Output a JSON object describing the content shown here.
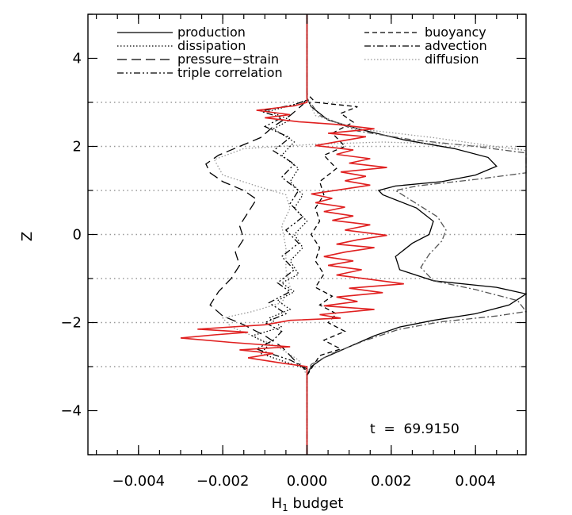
{
  "chart_data": {
    "type": "line",
    "xlabel": "H",
    "xlabel_sub": "1",
    "xlabel_rest": " budget",
    "ylabel": "Z",
    "xlim": [
      -0.0052,
      0.0052
    ],
    "ylim": [
      -5,
      5
    ],
    "xticks": [
      -0.004,
      -0.002,
      0.0,
      0.002,
      0.004
    ],
    "xtick_labels": [
      "−0.004",
      "−0.002",
      "0.000",
      "0.002",
      "0.004"
    ],
    "yticks": [
      -4,
      -2,
      0,
      2,
      4
    ],
    "ytick_labels": [
      "−4",
      "−2",
      "0",
      "2",
      "4"
    ],
    "hlines": [
      -3,
      -2,
      -1,
      0,
      1,
      2,
      3
    ],
    "annotation": "t  =  69.9150",
    "legend": [
      {
        "name": "production",
        "dash": "solid",
        "color": "#000000"
      },
      {
        "name": "dissipation",
        "dash": "dotted",
        "color": "#000000"
      },
      {
        "name": "pressure−strain",
        "dash": "longdash",
        "color": "#000000"
      },
      {
        "name": "triple correlation",
        "dash": "dashdotdot",
        "color": "#000000"
      },
      {
        "name": "buoyancy",
        "dash": "dashed",
        "color": "#000000"
      },
      {
        "name": "advection",
        "dash": "dashdot",
        "color": "#000000"
      },
      {
        "name": "diffusion",
        "dash": "dotted",
        "color": "#999999"
      }
    ],
    "colors": {
      "total": "#e02020",
      "grid": "#999999",
      "axis": "#000000"
    },
    "series": [
      {
        "key": "production",
        "dash": "solid",
        "color": "#000000",
        "points": [
          [
            0,
            -5
          ],
          [
            0,
            -3.2
          ],
          [
            0.0001,
            -3.0
          ],
          [
            0.0004,
            -2.8
          ],
          [
            0.001,
            -2.55
          ],
          [
            0.0016,
            -2.3
          ],
          [
            0.0022,
            -2.1
          ],
          [
            0.003,
            -1.95
          ],
          [
            0.004,
            -1.8
          ],
          [
            0.0048,
            -1.6
          ],
          [
            0.0052,
            -1.35
          ],
          [
            0.0045,
            -1.2
          ],
          [
            0.003,
            -1.05
          ],
          [
            0.0022,
            -0.8
          ],
          [
            0.0021,
            -0.5
          ],
          [
            0.0025,
            -0.2
          ],
          [
            0.0029,
            0.0
          ],
          [
            0.003,
            0.3
          ],
          [
            0.0026,
            0.6
          ],
          [
            0.0018,
            0.9
          ],
          [
            0.0017,
            1.0
          ],
          [
            0.0021,
            1.1
          ],
          [
            0.0032,
            1.2
          ],
          [
            0.004,
            1.35
          ],
          [
            0.0045,
            1.55
          ],
          [
            0.0043,
            1.75
          ],
          [
            0.0035,
            1.95
          ],
          [
            0.0023,
            2.15
          ],
          [
            0.0012,
            2.4
          ],
          [
            0.0005,
            2.6
          ],
          [
            0.0001,
            2.9
          ],
          [
            0,
            3.1
          ],
          [
            0,
            5
          ]
        ]
      },
      {
        "key": "advection",
        "dash": "dashdot",
        "color": "#555555",
        "points": [
          [
            0,
            -5
          ],
          [
            0,
            -3.2
          ],
          [
            0.0001,
            -2.95
          ],
          [
            0.0006,
            -2.7
          ],
          [
            0.0014,
            -2.4
          ],
          [
            0.0022,
            -2.15
          ],
          [
            0.0032,
            -1.98
          ],
          [
            0.0045,
            -1.85
          ],
          [
            0.0052,
            -1.75
          ],
          [
            0.005,
            -1.5
          ],
          [
            0.004,
            -1.25
          ],
          [
            0.003,
            -1.05
          ],
          [
            0.0027,
            -0.75
          ],
          [
            0.0029,
            -0.45
          ],
          [
            0.0032,
            -0.15
          ],
          [
            0.0033,
            0.1
          ],
          [
            0.0031,
            0.4
          ],
          [
            0.0026,
            0.7
          ],
          [
            0.0021,
            1.0
          ],
          [
            0.0026,
            1.1
          ],
          [
            0.004,
            1.25
          ],
          [
            0.0052,
            1.4
          ],
          [
            0.0052,
            1.85
          ],
          [
            0.004,
            2.0
          ],
          [
            0.0025,
            2.15
          ],
          [
            0.0012,
            2.35
          ],
          [
            0.0003,
            2.7
          ],
          [
            0,
            3.1
          ],
          [
            0,
            5
          ]
        ]
      },
      {
        "key": "diffusion",
        "dash": "dotted",
        "color": "#999999",
        "points": [
          [
            0,
            -5
          ],
          [
            0,
            -3.2
          ],
          [
            -0.0002,
            -2.85
          ],
          [
            -0.0007,
            -2.55
          ],
          [
            -0.0013,
            -2.3
          ],
          [
            -0.0018,
            -2.1
          ],
          [
            -0.002,
            -1.9
          ],
          [
            -0.0013,
            -1.75
          ],
          [
            -0.0006,
            -1.55
          ],
          [
            -0.0004,
            -1.2
          ],
          [
            -0.0005,
            -0.8
          ],
          [
            -0.0005,
            -0.3
          ],
          [
            -0.0006,
            0.2
          ],
          [
            -0.0004,
            0.6
          ],
          [
            -0.0005,
            0.9
          ],
          [
            -0.0012,
            1.1
          ],
          [
            -0.002,
            1.35
          ],
          [
            -0.0022,
            1.7
          ],
          [
            -0.0015,
            1.95
          ],
          [
            0.0002,
            2.05
          ],
          [
            0.0018,
            2.1
          ],
          [
            0.0035,
            2.05
          ],
          [
            0.005,
            1.95
          ],
          [
            0.0052,
            1.9
          ],
          [
            0.003,
            2.2
          ],
          [
            0.0012,
            2.4
          ],
          [
            0.0002,
            2.7
          ],
          [
            0,
            3.1
          ],
          [
            0,
            5
          ]
        ]
      },
      {
        "key": "pressure-strain",
        "dash": "longdash",
        "color": "#000000",
        "points": [
          [
            0,
            -5
          ],
          [
            0,
            -3.1
          ],
          [
            -0.0003,
            -2.85
          ],
          [
            -0.0006,
            -2.55
          ],
          [
            -0.001,
            -2.3
          ],
          [
            -0.0015,
            -2.05
          ],
          [
            -0.002,
            -1.85
          ],
          [
            -0.0023,
            -1.6
          ],
          [
            -0.0021,
            -1.3
          ],
          [
            -0.0018,
            -1.0
          ],
          [
            -0.0016,
            -0.7
          ],
          [
            -0.0017,
            -0.4
          ],
          [
            -0.0015,
            -0.1
          ],
          [
            -0.0016,
            0.2
          ],
          [
            -0.0014,
            0.5
          ],
          [
            -0.0012,
            0.8
          ],
          [
            -0.0015,
            1.0
          ],
          [
            -0.002,
            1.2
          ],
          [
            -0.0023,
            1.4
          ],
          [
            -0.0024,
            1.6
          ],
          [
            -0.0021,
            1.8
          ],
          [
            -0.0016,
            2.0
          ],
          [
            -0.0011,
            2.2
          ],
          [
            -0.0008,
            2.45
          ],
          [
            -0.0004,
            2.7
          ],
          [
            -0.0001,
            2.95
          ],
          [
            0,
            3.1
          ],
          [
            0,
            5
          ]
        ]
      },
      {
        "key": "dissipation",
        "dash": "dotted",
        "color": "#000000",
        "points": [
          [
            0,
            -5
          ],
          [
            0,
            -3.05
          ],
          [
            -0.0005,
            -2.9
          ],
          [
            -0.0011,
            -2.7
          ],
          [
            -0.0009,
            -2.5
          ],
          [
            -0.0013,
            -2.3
          ],
          [
            -0.0006,
            -2.1
          ],
          [
            -0.0009,
            -1.9
          ],
          [
            -0.0004,
            -1.7
          ],
          [
            -0.0007,
            -1.5
          ],
          [
            -0.0003,
            -1.3
          ],
          [
            -0.0006,
            -1.1
          ],
          [
            -0.0002,
            -0.9
          ],
          [
            -0.0004,
            -0.6
          ],
          [
            -0.0001,
            -0.3
          ],
          [
            -0.0003,
            0.0
          ],
          [
            0.0,
            0.3
          ],
          [
            -0.0003,
            0.6
          ],
          [
            -0.0001,
            0.9
          ],
          [
            -0.0004,
            1.2
          ],
          [
            -0.0002,
            1.5
          ],
          [
            -0.0006,
            1.8
          ],
          [
            -0.0003,
            2.1
          ],
          [
            -0.0008,
            2.4
          ],
          [
            -0.0004,
            2.6
          ],
          [
            -0.0009,
            2.8
          ],
          [
            -0.0003,
            2.95
          ],
          [
            0,
            3.05
          ],
          [
            0,
            5
          ]
        ]
      },
      {
        "key": "triple correlation",
        "dash": "dashdotdot",
        "color": "#000000",
        "points": [
          [
            0,
            -5
          ],
          [
            0,
            -3.05
          ],
          [
            -0.0004,
            -2.85
          ],
          [
            -0.0012,
            -2.6
          ],
          [
            -0.0008,
            -2.4
          ],
          [
            -0.0006,
            -2.2
          ],
          [
            -0.001,
            -2.0
          ],
          [
            -0.0005,
            -1.8
          ],
          [
            -0.0009,
            -1.55
          ],
          [
            -0.0004,
            -1.3
          ],
          [
            -0.0007,
            -1.1
          ],
          [
            -0.0003,
            -0.8
          ],
          [
            -0.0006,
            -0.5
          ],
          [
            -0.0002,
            -0.2
          ],
          [
            -0.0005,
            0.1
          ],
          [
            -0.0001,
            0.4
          ],
          [
            -0.0004,
            0.7
          ],
          [
            -0.0002,
            1.0
          ],
          [
            -0.0006,
            1.3
          ],
          [
            -0.0003,
            1.6
          ],
          [
            -0.0008,
            1.9
          ],
          [
            -0.0004,
            2.2
          ],
          [
            -0.001,
            2.45
          ],
          [
            -0.0006,
            2.65
          ],
          [
            -0.0011,
            2.8
          ],
          [
            -0.0003,
            2.95
          ],
          [
            0,
            3.05
          ],
          [
            0,
            5
          ]
        ]
      },
      {
        "key": "buoyancy",
        "dash": "dashed",
        "color": "#000000",
        "points": [
          [
            0,
            -5
          ],
          [
            0,
            -3.2
          ],
          [
            0.0003,
            -2.75
          ],
          [
            0.0008,
            -2.6
          ],
          [
            0.0004,
            -2.4
          ],
          [
            0.0009,
            -2.2
          ],
          [
            0.0005,
            -2.0
          ],
          [
            0.0007,
            -1.8
          ],
          [
            0.0003,
            -1.6
          ],
          [
            0.0006,
            -1.4
          ],
          [
            0.0002,
            -1.2
          ],
          [
            0.0004,
            -0.9
          ],
          [
            0.0002,
            -0.6
          ],
          [
            0.0003,
            -0.3
          ],
          [
            0.0001,
            0.0
          ],
          [
            0.0003,
            0.3
          ],
          [
            0.0002,
            0.6
          ],
          [
            0.0004,
            0.9
          ],
          [
            0.0003,
            1.2
          ],
          [
            0.0007,
            1.5
          ],
          [
            0.0004,
            1.8
          ],
          [
            0.0009,
            2.0
          ],
          [
            0.0006,
            2.3
          ],
          [
            0.0011,
            2.55
          ],
          [
            0.0008,
            2.75
          ],
          [
            0.0012,
            2.9
          ],
          [
            0.0002,
            3.0
          ],
          [
            0,
            3.2
          ],
          [
            0,
            5
          ]
        ]
      },
      {
        "key": "total",
        "dash": "solid",
        "color": "#e02020",
        "points": [
          [
            0,
            -5
          ],
          [
            0,
            -3.0
          ],
          [
            -0.0006,
            -2.92
          ],
          [
            -0.0014,
            -2.8
          ],
          [
            -0.0008,
            -2.7
          ],
          [
            -0.0016,
            -2.62
          ],
          [
            -0.0004,
            -2.55
          ],
          [
            -0.0018,
            -2.45
          ],
          [
            -0.003,
            -2.35
          ],
          [
            -0.0022,
            -2.28
          ],
          [
            -0.0014,
            -2.22
          ],
          [
            -0.0026,
            -2.15
          ],
          [
            -0.001,
            -2.05
          ],
          [
            -0.0004,
            -1.95
          ],
          [
            0.0008,
            -1.9
          ],
          [
            0.0003,
            -1.82
          ],
          [
            0.0016,
            -1.7
          ],
          [
            0.0004,
            -1.62
          ],
          [
            0.0012,
            -1.52
          ],
          [
            0.0007,
            -1.42
          ],
          [
            0.0018,
            -1.32
          ],
          [
            0.001,
            -1.22
          ],
          [
            0.0023,
            -1.12
          ],
          [
            0.0015,
            -1.02
          ],
          [
            0.0007,
            -0.92
          ],
          [
            0.0013,
            -0.8
          ],
          [
            0.0005,
            -0.7
          ],
          [
            0.0011,
            -0.6
          ],
          [
            0.0004,
            -0.5
          ],
          [
            0.0009,
            -0.4
          ],
          [
            0.0016,
            -0.3
          ],
          [
            0.0007,
            -0.22
          ],
          [
            0.0012,
            -0.12
          ],
          [
            0.0019,
            -0.02
          ],
          [
            0.0009,
            0.1
          ],
          [
            0.0015,
            0.22
          ],
          [
            0.0006,
            0.32
          ],
          [
            0.0011,
            0.42
          ],
          [
            0.0004,
            0.52
          ],
          [
            0.0009,
            0.62
          ],
          [
            0.0002,
            0.72
          ],
          [
            0.0006,
            0.82
          ],
          [
            0.0001,
            0.92
          ],
          [
            0.0008,
            1.02
          ],
          [
            0.0015,
            1.12
          ],
          [
            0.0009,
            1.22
          ],
          [
            0.0014,
            1.32
          ],
          [
            0.0008,
            1.42
          ],
          [
            0.0019,
            1.52
          ],
          [
            0.001,
            1.62
          ],
          [
            0.0015,
            1.72
          ],
          [
            0.0007,
            1.82
          ],
          [
            0.0011,
            1.92
          ],
          [
            0.0002,
            2.02
          ],
          [
            0.0008,
            2.12
          ],
          [
            0.0014,
            2.22
          ],
          [
            0.0005,
            2.3
          ],
          [
            0.0016,
            2.4
          ],
          [
            0.0007,
            2.5
          ],
          [
            -0.0002,
            2.56
          ],
          [
            -0.001,
            2.65
          ],
          [
            -0.0004,
            2.72
          ],
          [
            -0.0012,
            2.82
          ],
          [
            -0.0003,
            2.92
          ],
          [
            0,
            3.0
          ],
          [
            0,
            5
          ]
        ]
      }
    ]
  }
}
